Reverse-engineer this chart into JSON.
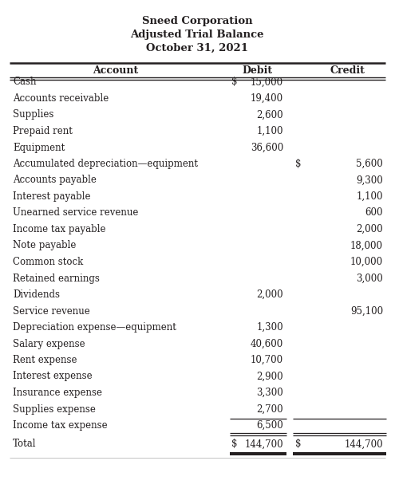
{
  "title1": "Sneed Corporation",
  "title2": "Adjusted Trial Balance",
  "title3": "October 31, 2021",
  "col_headers": [
    "Account",
    "Debit",
    "Credit"
  ],
  "rows": [
    {
      "account": "Cash",
      "debit": "15,000",
      "credit": "",
      "debit_dollar": true,
      "credit_dollar": false
    },
    {
      "account": "Accounts receivable",
      "debit": "19,400",
      "credit": "",
      "debit_dollar": false,
      "credit_dollar": false
    },
    {
      "account": "Supplies",
      "debit": "2,600",
      "credit": "",
      "debit_dollar": false,
      "credit_dollar": false
    },
    {
      "account": "Prepaid rent",
      "debit": "1,100",
      "credit": "",
      "debit_dollar": false,
      "credit_dollar": false
    },
    {
      "account": "Equipment",
      "debit": "36,600",
      "credit": "",
      "debit_dollar": false,
      "credit_dollar": false
    },
    {
      "account": "Accumulated depreciation—equipment",
      "debit": "",
      "credit": "5,600",
      "debit_dollar": false,
      "credit_dollar": true
    },
    {
      "account": "Accounts payable",
      "debit": "",
      "credit": "9,300",
      "debit_dollar": false,
      "credit_dollar": false
    },
    {
      "account": "Interest payable",
      "debit": "",
      "credit": "1,100",
      "debit_dollar": false,
      "credit_dollar": false
    },
    {
      "account": "Unearned service revenue",
      "debit": "",
      "credit": "600",
      "debit_dollar": false,
      "credit_dollar": false
    },
    {
      "account": "Income tax payable",
      "debit": "",
      "credit": "2,000",
      "debit_dollar": false,
      "credit_dollar": false
    },
    {
      "account": "Note payable",
      "debit": "",
      "credit": "18,000",
      "debit_dollar": false,
      "credit_dollar": false
    },
    {
      "account": "Common stock",
      "debit": "",
      "credit": "10,000",
      "debit_dollar": false,
      "credit_dollar": false
    },
    {
      "account": "Retained earnings",
      "debit": "",
      "credit": "3,000",
      "debit_dollar": false,
      "credit_dollar": false
    },
    {
      "account": "Dividends",
      "debit": "2,000",
      "credit": "",
      "debit_dollar": false,
      "credit_dollar": false
    },
    {
      "account": "Service revenue",
      "debit": "",
      "credit": "95,100",
      "debit_dollar": false,
      "credit_dollar": false
    },
    {
      "account": "Depreciation expense—equipment",
      "debit": "1,300",
      "credit": "",
      "debit_dollar": false,
      "credit_dollar": false
    },
    {
      "account": "Salary expense",
      "debit": "40,600",
      "credit": "",
      "debit_dollar": false,
      "credit_dollar": false
    },
    {
      "account": "Rent expense",
      "debit": "10,700",
      "credit": "",
      "debit_dollar": false,
      "credit_dollar": false
    },
    {
      "account": "Interest expense",
      "debit": "2,900",
      "credit": "",
      "debit_dollar": false,
      "credit_dollar": false
    },
    {
      "account": "Insurance expense",
      "debit": "3,300",
      "credit": "",
      "debit_dollar": false,
      "credit_dollar": false
    },
    {
      "account": "Supplies expense",
      "debit": "2,700",
      "credit": "",
      "debit_dollar": false,
      "credit_dollar": false
    },
    {
      "account": "Income tax expense",
      "debit": "6,500",
      "credit": "",
      "debit_dollar": false,
      "credit_dollar": false
    }
  ],
  "total_row": {
    "account": "Total",
    "debit": "144,700",
    "credit": "144,700"
  },
  "bg_color": "#ffffff",
  "text_color": "#231f20",
  "line_color": "#231f20"
}
